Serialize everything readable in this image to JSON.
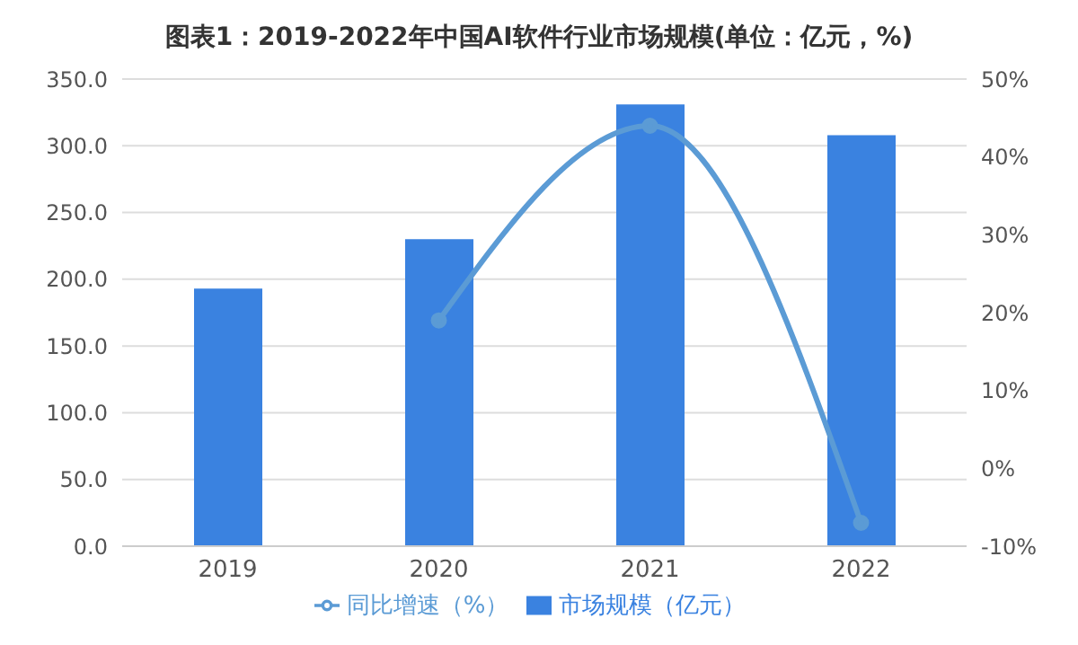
{
  "chart_data": {
    "type": "bar",
    "title": "图表1：2019-2022年中国AI软件行业市场规模(单位：亿元，%)",
    "categories": [
      "2019",
      "2020",
      "2021",
      "2022"
    ],
    "series": [
      {
        "name": "市场规模（亿元）",
        "color": "#3a82e0",
        "values": [
          193,
          230,
          331,
          308
        ]
      },
      {
        "name": "同比增速（%）",
        "type": "line",
        "axis": "y2",
        "color": "#5b9bd5",
        "values": [
          null,
          19,
          44,
          -7
        ]
      }
    ],
    "ylim": [
      0,
      350
    ],
    "yticks": [
      {
        "value": 0,
        "label": "0.0"
      },
      {
        "value": 50,
        "label": "50.0"
      },
      {
        "value": 100,
        "label": "100.0"
      },
      {
        "value": 150,
        "label": "150.0"
      },
      {
        "value": 200,
        "label": "200.0"
      },
      {
        "value": 250,
        "label": "250.0"
      },
      {
        "value": 300,
        "label": "300.0"
      },
      {
        "value": 350,
        "label": "350.0"
      }
    ],
    "y2lim": [
      -10,
      50
    ],
    "y2ticks": [
      {
        "value": -10,
        "label": "-10%"
      },
      {
        "value": 0,
        "label": "0%"
      },
      {
        "value": 10,
        "label": "10%"
      },
      {
        "value": 20,
        "label": "20%"
      },
      {
        "value": 30,
        "label": "30%"
      },
      {
        "value": 40,
        "label": "40%"
      },
      {
        "value": 50,
        "label": "50%"
      }
    ],
    "grid": "y",
    "legend": "bottom",
    "marker": "circle",
    "line_style": "solid"
  }
}
